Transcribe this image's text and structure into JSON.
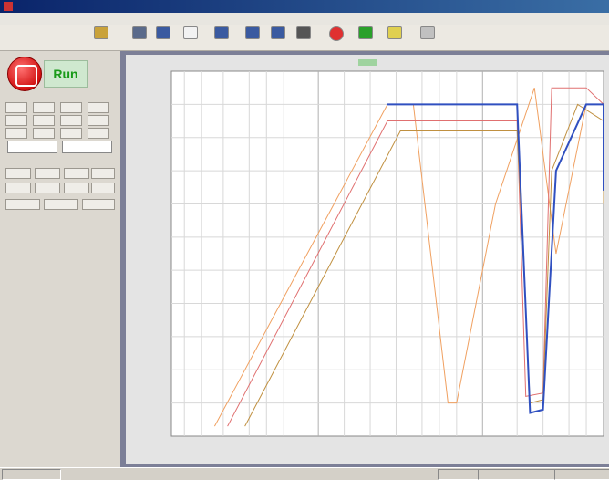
{
  "window": {
    "title": ""
  },
  "menu": {
    "items": [
      "",
      "",
      "",
      "",
      "",
      "",
      "",
      ""
    ]
  },
  "toolbar": {
    "buttons": [
      {
        "icon": "open-folder-icon",
        "color": "#c9a23a"
      },
      {
        "icon": "save-icon",
        "color": "#5a6a8a"
      },
      {
        "icon": "graph-icon",
        "color": "#3a5aa0"
      },
      {
        "icon": "page-icon",
        "color": "#f2f2f2"
      },
      {
        "icon": "chart-icon",
        "color": "#3a5aa0"
      },
      {
        "icon": "chart-icon",
        "color": "#3a5aa0"
      },
      {
        "icon": "chart-icon",
        "color": "#3a5aa0"
      },
      {
        "icon": "arrow-icon",
        "color": "#555555"
      },
      {
        "icon": "stop-icon",
        "color": "#e03030"
      },
      {
        "icon": "run-icon",
        "color": "#2aa02a"
      },
      {
        "icon": "help-icon",
        "color": "#e0d050"
      },
      {
        "icon": "info-icon",
        "color": "#c0c0c0"
      }
    ]
  },
  "controls": {
    "run_label": "Run",
    "stop_icon": "stop-icon",
    "stop_color": "#e02020",
    "run_color": "#1a9a1a"
  },
  "chart_data": {
    "type": "line",
    "title": "",
    "xlabel": "",
    "ylabel": "",
    "xlim": [
      0,
      1000
    ],
    "ylim": [
      0,
      1100
    ],
    "series": [
      {
        "color": "#f0a060",
        "x": [
          100,
          500,
          560,
          640,
          660,
          750,
          840,
          890,
          960,
          1000,
          1050
        ],
        "y": [
          30,
          1000,
          1000,
          100,
          100,
          700,
          1050,
          550,
          1000,
          1000,
          720
        ]
      },
      {
        "color": "#e07070",
        "x": [
          130,
          500,
          800,
          820,
          860,
          880,
          960,
          1000,
          1050
        ],
        "y": [
          30,
          950,
          950,
          120,
          130,
          1050,
          1050,
          1000,
          720
        ]
      },
      {
        "color": "#c09040",
        "x": [
          170,
          530,
          800,
          830,
          860,
          880,
          940,
          1000,
          1050
        ],
        "y": [
          30,
          920,
          920,
          100,
          110,
          800,
          1000,
          950,
          700
        ]
      },
      {
        "color": "#3050c0",
        "x": [
          500,
          800,
          830,
          860,
          890,
          960,
          1000,
          1050
        ],
        "y": [
          1000,
          1000,
          70,
          80,
          800,
          1000,
          1000,
          740
        ]
      }
    ]
  },
  "status": {
    "cells": [
      "",
      "",
      "",
      ""
    ]
  }
}
